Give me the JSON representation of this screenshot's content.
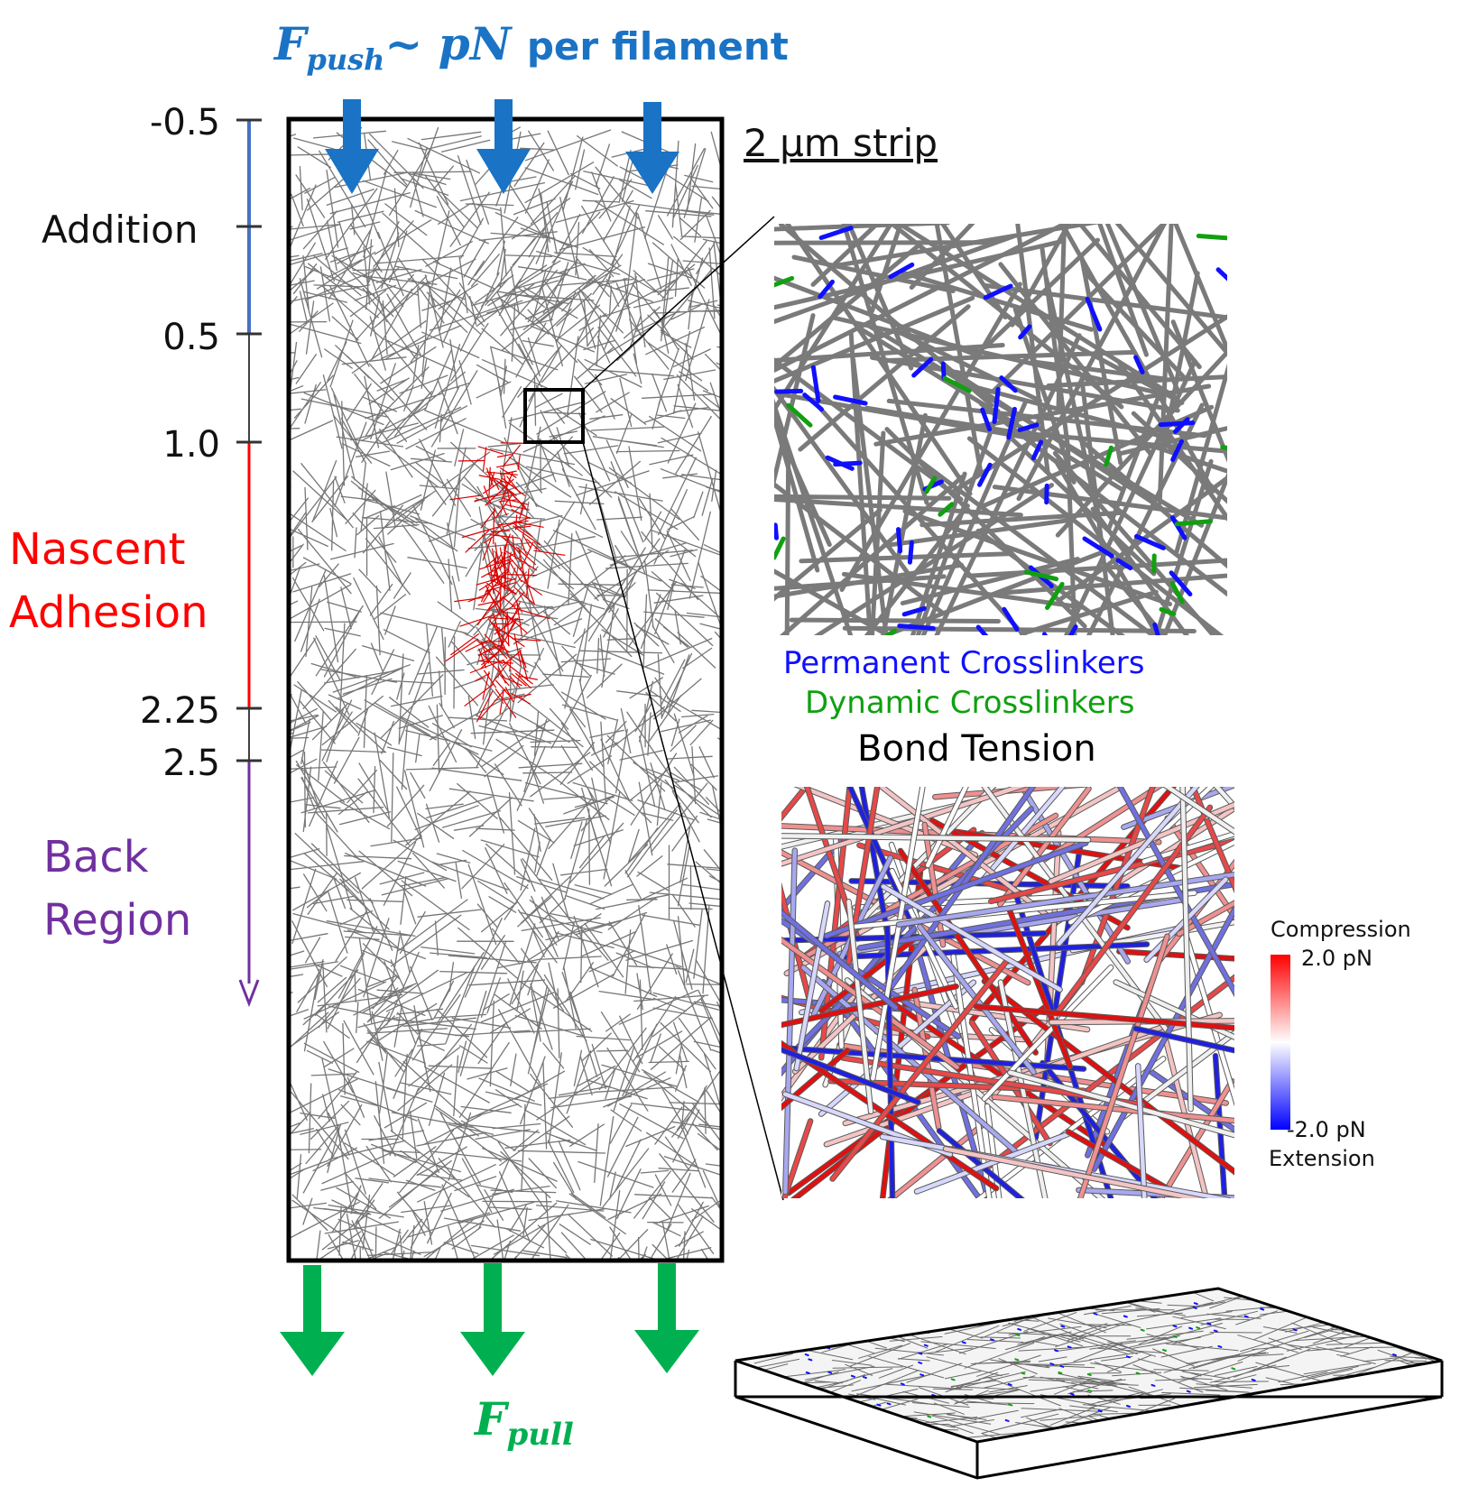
{
  "forces": {
    "push_F": "F",
    "push_sub": "push",
    "push_tilde": "~ ",
    "push_pn": "pN",
    "push_text": "per filament",
    "pull_F": "F",
    "pull_sub": "pull"
  },
  "axis": {
    "ticks": [
      "-0.5",
      "0.5",
      "1.0",
      "2.25",
      "2.5"
    ],
    "regions": {
      "addition": "Addition",
      "nascent_line1": "Nascent",
      "nascent_line2": "Adhesion",
      "back_line1": "Back",
      "back_line2": "Region"
    }
  },
  "strip_label": "2 μm strip",
  "zoom": {
    "permanent_label": "Permanent Crosslinkers",
    "dynamic_label": "Dynamic Crosslinkers",
    "tension_title": "Bond Tension"
  },
  "colorbar": {
    "top_label": "Compression",
    "max_label": "2.0 pN",
    "min_label": "-2.0 pN",
    "bottom_label": "Extension"
  },
  "colors": {
    "push": "#1a73c4",
    "pull": "#00b050",
    "addition": "#4472c4",
    "nascent": "#ff0000",
    "back": "#7030a0",
    "permanent": "#1010ff",
    "dynamic": "#10a010",
    "filament": "#6e6e6e"
  }
}
